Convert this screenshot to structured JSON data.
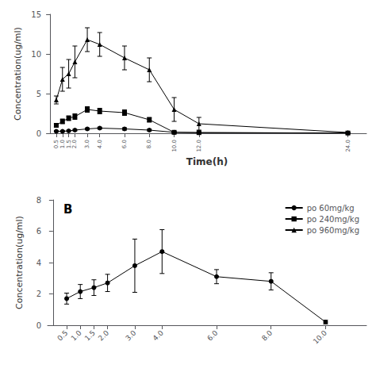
{
  "chart_data": [
    {
      "type": "line",
      "xlabel": "Time(h)",
      "ylabel": "Concentration(ug/ml)",
      "x": [
        0.5,
        1.0,
        1.5,
        2.0,
        3.0,
        4.0,
        6.0,
        8.0,
        10.0,
        12.0,
        24.0
      ],
      "xlim": [
        -0.2,
        25.5
      ],
      "xticks": [
        0.5,
        {
          "value": 1.0,
          "label": "1.0"
        },
        1.5,
        {
          "value": 2.0,
          "label": "2.0"
        },
        {
          "value": 3.0,
          "label": "3.0"
        },
        {
          "value": 4.0,
          "label": "4.0"
        },
        {
          "value": 6.0,
          "label": "6.0"
        },
        {
          "value": 8.0,
          "label": "8.0"
        },
        {
          "value": 10.0,
          "label": "10.0"
        },
        {
          "value": 12.0,
          "label": "12.0"
        },
        {
          "value": 24.0,
          "label": "24.0"
        }
      ],
      "ylim": [
        0,
        15
      ],
      "yticks": [
        0,
        5,
        10,
        15
      ],
      "grid": false,
      "series": [
        {
          "marker": "circle",
          "color": "#000000",
          "values": [
            0.25,
            0.25,
            0.3,
            0.4,
            0.55,
            0.65,
            0.55,
            0.4,
            0.12,
            0.08,
            0.03
          ],
          "errors": [
            0.08,
            0.08,
            0.08,
            0.1,
            0.12,
            0.12,
            0.15,
            0.12,
            0.08,
            0.04,
            0.02
          ]
        },
        {
          "marker": "square",
          "color": "#000000",
          "values": [
            1.0,
            1.5,
            1.9,
            2.1,
            3.0,
            2.8,
            2.6,
            1.7,
            0.12,
            0.08,
            0.03
          ],
          "errors": [
            0.2,
            0.3,
            0.3,
            0.35,
            0.35,
            0.35,
            0.35,
            0.3,
            0.08,
            0.05,
            0.02
          ]
        },
        {
          "marker": "triangle",
          "color": "#000000",
          "values": [
            4.2,
            6.8,
            7.5,
            9.0,
            11.8,
            11.2,
            9.5,
            8.0,
            3.0,
            1.2,
            0.1
          ],
          "errors": [
            0.5,
            1.5,
            1.8,
            2.0,
            1.5,
            1.5,
            1.5,
            1.5,
            1.5,
            0.8,
            0.05
          ]
        }
      ]
    },
    {
      "type": "line",
      "ylabel": "Concentration(ug/ml)",
      "annotations": [
        "B"
      ],
      "x": [
        0.5,
        1.0,
        1.5,
        2.0,
        3.0,
        4.0,
        6.0,
        8.0,
        10.0
      ],
      "xlim": [
        -0.2,
        11.5
      ],
      "xticks": [
        0.5,
        {
          "value": 1.0,
          "label": "1.0"
        },
        1.5,
        {
          "value": 2.0,
          "label": "2.0"
        },
        {
          "value": 3.0,
          "label": "3.0"
        },
        {
          "value": 4.0,
          "label": "4.0"
        },
        {
          "value": 6.0,
          "label": "6.0"
        },
        {
          "value": 8.0,
          "label": "8.0"
        },
        {
          "value": 10.0,
          "label": "10.0"
        }
      ],
      "ylim": [
        0,
        8
      ],
      "yticks": [
        0,
        2,
        4,
        6,
        8
      ],
      "grid": false,
      "legend": "upper right",
      "series": [
        {
          "name": "po 60mg/kg",
          "marker": "circle",
          "color": "#000000",
          "values": [
            1.7,
            2.15,
            2.4,
            2.7,
            3.8,
            4.7,
            3.1,
            2.8,
            0.2
          ],
          "errors": [
            0.35,
            0.45,
            0.5,
            0.55,
            1.7,
            1.4,
            0.45,
            0.55,
            0.12
          ]
        }
      ],
      "legend_entries": [
        {
          "name": "po 60mg/kg",
          "marker": "circle",
          "color": "#000000"
        },
        {
          "name": "po 240mg/kg",
          "marker": "square",
          "color": "#000000"
        },
        {
          "name": "po 960mg/kg",
          "marker": "triangle",
          "color": "#000000"
        }
      ]
    }
  ]
}
